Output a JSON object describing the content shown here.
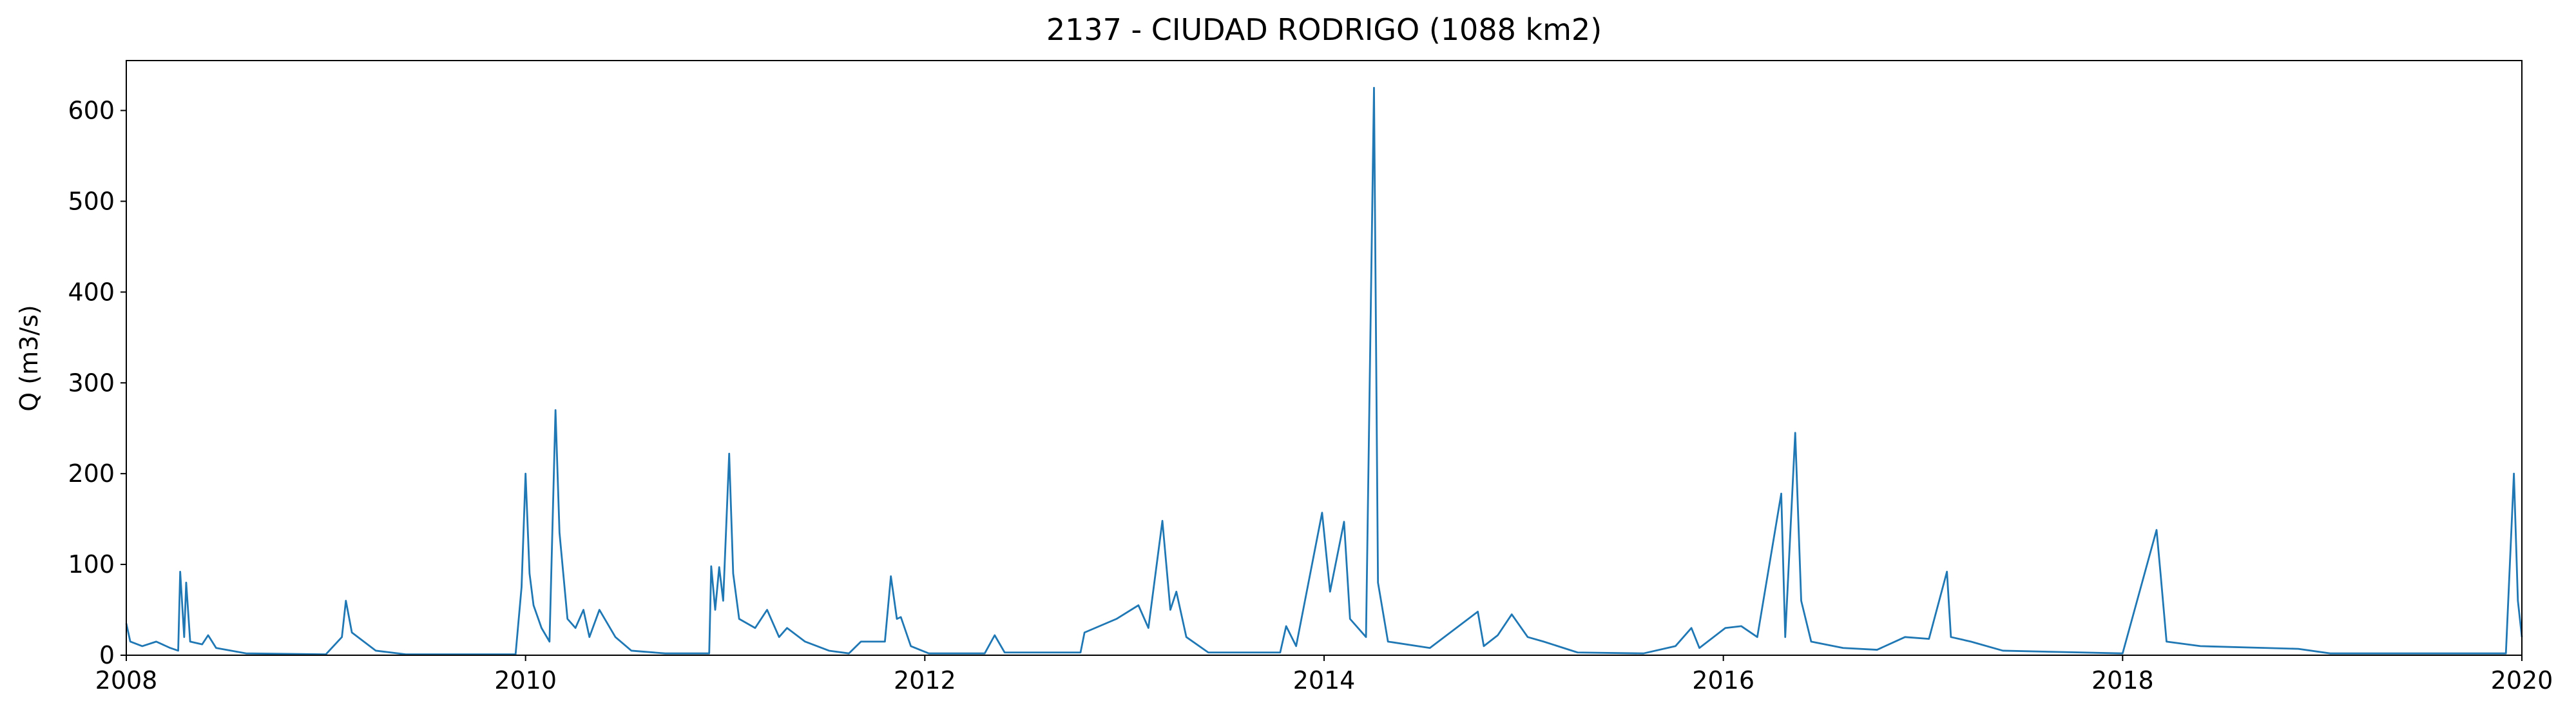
{
  "chart_data": {
    "type": "line",
    "title": "2137 - CIUDAD RODRIGO (1088 km2)",
    "y_label": "Q (m3/s)",
    "xlim": [
      2008,
      2020
    ],
    "xticks": [
      2008,
      2010,
      2012,
      2014,
      2016,
      2018,
      2020
    ],
    "ylim": [
      0,
      655
    ],
    "yticks": [
      0,
      100,
      200,
      300,
      400,
      500,
      600
    ],
    "series": [
      {
        "color": "#1f77b4",
        "x": [
          2008.0,
          2008.02,
          2008.08,
          2008.15,
          2008.22,
          2008.26,
          2008.27,
          2008.29,
          2008.3,
          2008.32,
          2008.38,
          2008.41,
          2008.45,
          2008.6,
          2009.0,
          2009.08,
          2009.1,
          2009.13,
          2009.25,
          2009.4,
          2009.95,
          2009.98,
          2010.0,
          2010.02,
          2010.04,
          2010.08,
          2010.12,
          2010.15,
          2010.17,
          2010.21,
          2010.25,
          2010.29,
          2010.32,
          2010.37,
          2010.45,
          2010.53,
          2010.7,
          2010.92,
          2010.93,
          2010.95,
          2010.97,
          2010.99,
          2011.02,
          2011.04,
          2011.07,
          2011.15,
          2011.21,
          2011.27,
          2011.31,
          2011.4,
          2011.52,
          2011.62,
          2011.68,
          2011.8,
          2011.83,
          2011.86,
          2011.88,
          2011.93,
          2012.02,
          2012.3,
          2012.35,
          2012.4,
          2012.78,
          2012.8,
          2012.96,
          2013.07,
          2013.12,
          2013.19,
          2013.23,
          2013.26,
          2013.31,
          2013.42,
          2013.78,
          2013.81,
          2013.86,
          2013.99,
          2014.03,
          2014.1,
          2014.13,
          2014.21,
          2014.25,
          2014.27,
          2014.32,
          2014.53,
          2014.77,
          2014.8,
          2014.87,
          2014.94,
          2015.02,
          2015.1,
          2015.27,
          2015.6,
          2015.76,
          2015.84,
          2015.88,
          2016.01,
          2016.09,
          2016.17,
          2016.29,
          2016.31,
          2016.36,
          2016.39,
          2016.44,
          2016.6,
          2016.77,
          2016.91,
          2017.03,
          2017.12,
          2017.14,
          2017.24,
          2017.4,
          2018.0,
          2018.17,
          2018.19,
          2018.22,
          2018.39,
          2018.72,
          2018.88,
          2019.04,
          2019.92,
          2019.96,
          2019.98,
          2020.0
        ],
        "values": [
          35,
          15,
          10,
          15,
          8,
          5,
          92,
          20,
          80,
          15,
          12,
          22,
          8,
          2,
          1,
          20,
          60,
          25,
          5,
          1,
          1,
          75,
          200,
          90,
          55,
          30,
          15,
          270,
          135,
          40,
          30,
          50,
          20,
          50,
          20,
          5,
          2,
          2,
          98,
          50,
          97,
          60,
          222,
          90,
          40,
          30,
          50,
          20,
          30,
          15,
          5,
          2,
          15,
          15,
          87,
          40,
          42,
          10,
          2,
          2,
          22,
          3,
          3,
          25,
          40,
          55,
          30,
          148,
          50,
          70,
          20,
          3,
          3,
          32,
          10,
          157,
          70,
          147,
          40,
          20,
          625,
          80,
          15,
          8,
          48,
          10,
          22,
          45,
          20,
          15,
          3,
          2,
          10,
          30,
          8,
          30,
          32,
          20,
          178,
          20,
          245,
          60,
          15,
          8,
          6,
          20,
          18,
          92,
          20,
          15,
          5,
          2,
          138,
          90,
          15,
          10,
          8,
          7,
          2,
          2,
          200,
          60,
          20
        ]
      }
    ]
  }
}
